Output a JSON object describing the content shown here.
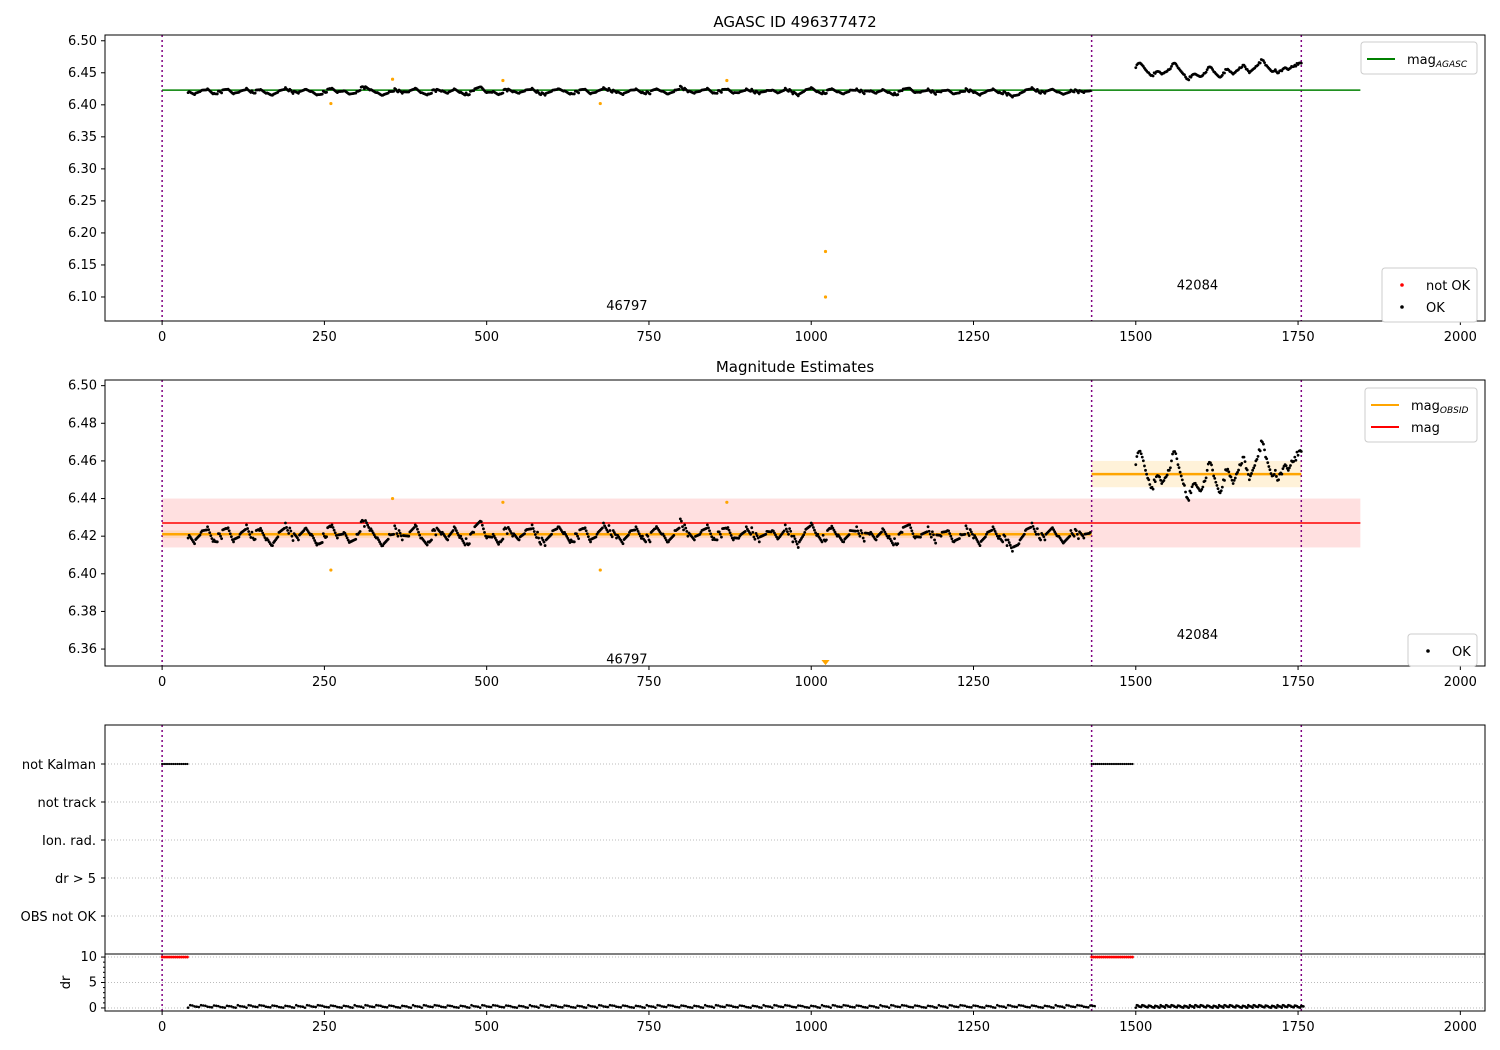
{
  "chart_data": [
    {
      "type": "scatter",
      "title": "AGASC ID 496377472",
      "xlim": [
        -88,
        2038
      ],
      "ylim": [
        6.0625,
        6.509
      ],
      "xticks": [
        0,
        250,
        500,
        750,
        1000,
        1250,
        1500,
        1750,
        2000
      ],
      "yticks": [
        "6.10",
        "6.15",
        "6.20",
        "6.25",
        "6.30",
        "6.35",
        "6.40",
        "6.45",
        "6.50"
      ],
      "hlines": [
        {
          "name": "mag_AGASC",
          "label_main": "mag",
          "label_sub": "AGASC",
          "y": 6.423,
          "x": [
            0,
            1846
          ],
          "color": "#008000"
        }
      ],
      "legend_top": [
        {
          "label_main": "mag",
          "label_sub": "AGASC",
          "color": "#008000",
          "kind": "line"
        }
      ],
      "legend_bottom": [
        {
          "label": "not OK",
          "color": "#ff0000",
          "kind": "dot"
        },
        {
          "label": "OK",
          "color": "#000000",
          "kind": "dot"
        }
      ],
      "annotations": [
        {
          "text": "46797",
          "x": 716,
          "y": 6.08
        },
        {
          "text": "42084",
          "x": 1595,
          "y": 6.112
        }
      ]
    },
    {
      "type": "scatter",
      "title": "Magnitude Estimates",
      "xlim": [
        -88,
        2038
      ],
      "ylim": [
        6.351,
        6.503
      ],
      "xticks": [
        0,
        250,
        500,
        750,
        1000,
        1250,
        1500,
        1750,
        2000
      ],
      "yticks": [
        "6.36",
        "6.38",
        "6.40",
        "6.42",
        "6.44",
        "6.46",
        "6.48",
        "6.50"
      ],
      "hlines": [
        {
          "name": "mag",
          "y": 6.427,
          "x": [
            0,
            1846
          ],
          "color": "#ff0000",
          "band": [
            6.414,
            6.44
          ]
        },
        {
          "name": "mag_OBSID-46797",
          "y": 6.421,
          "x": [
            0,
            1432
          ],
          "color": "#ffa500",
          "band": [
            6.419,
            6.423
          ]
        },
        {
          "name": "mag_OBSID-42084",
          "y": 6.453,
          "x": [
            1432,
            1755
          ],
          "color": "#ffa500",
          "band": [
            6.446,
            6.46
          ]
        }
      ],
      "legend_top": [
        {
          "label_main": "mag",
          "label_sub": "OBSID",
          "color": "#ffa500",
          "kind": "line"
        },
        {
          "label_main": "mag",
          "label_sub": "",
          "color": "#ff0000",
          "kind": "line"
        }
      ],
      "legend_bottom": [
        {
          "label": "OK",
          "color": "#000000",
          "kind": "dot"
        }
      ],
      "annotations": [
        {
          "text": "46797",
          "x": 716,
          "y": 6.355
        },
        {
          "text": "42084",
          "x": 1595,
          "y": 6.368
        }
      ]
    },
    {
      "type": "scatter",
      "title": "",
      "categories": [
        "not Kalman",
        "not track",
        "Ion. rad.",
        "dr > 5",
        "OBS not OK"
      ],
      "flagged": [
        {
          "category": "not Kalman",
          "x": [
            0,
            40
          ]
        },
        {
          "category": "not Kalman",
          "x": [
            1432,
            1495
          ]
        }
      ]
    },
    {
      "type": "scatter",
      "ylabel": "dr",
      "xlim": [
        -88,
        2038
      ],
      "ylim": [
        -0.6,
        10.6
      ],
      "yticks": [
        "0",
        "5",
        "10"
      ],
      "xticks": [
        0,
        250,
        500,
        750,
        1000,
        1250,
        1500,
        1750,
        2000
      ],
      "dr_clipped": [
        {
          "x": [
            0,
            40
          ],
          "value": 10
        },
        {
          "x": [
            1432,
            1495
          ],
          "value": 10
        }
      ],
      "dr_typical": 0.3
    }
  ],
  "observation_boundaries": [
    0,
    1432,
    1755
  ],
  "magnitudes": {
    "seg1": {
      "x_start": 40,
      "x_step": 10,
      "values": [
        6.419,
        6.416,
        6.422,
        6.425,
        6.418,
        6.42,
        6.424,
        6.417,
        6.421,
        6.426,
        6.419,
        6.423,
        6.418,
        6.415,
        6.422,
        6.427,
        6.42,
        6.418,
        6.424,
        6.421,
        6.416,
        6.42,
        6.425,
        6.419,
        6.422,
        6.417,
        6.421,
        6.428,
        6.423,
        6.419,
        6.415,
        6.421,
        6.424,
        6.418,
        6.42,
        6.426,
        6.419,
        6.417,
        6.423,
        6.421,
        6.418,
        6.425,
        6.42,
        6.416,
        6.422,
        6.428,
        6.419,
        6.421,
        6.417,
        6.424,
        6.42,
        6.418,
        6.423,
        6.426,
        6.419,
        6.415,
        6.421,
        6.425,
        6.422,
        6.418,
        6.42,
        6.424,
        6.417,
        6.421,
        6.427,
        6.423,
        6.419,
        6.416,
        6.422,
        6.425,
        6.42,
        6.418,
        6.424,
        6.421,
        6.417,
        6.423,
        6.428,
        6.42,
        6.418,
        6.422,
        6.426,
        6.419,
        6.421,
        6.424,
        6.418,
        6.42,
        6.425,
        6.422,
        6.417,
        6.421,
        6.423,
        6.419,
        6.426,
        6.42,
        6.414,
        6.422,
        6.427,
        6.421,
        6.418,
        6.424,
        6.42,
        6.417,
        6.423,
        6.425,
        6.419,
        6.421,
        6.418,
        6.424,
        6.42,
        6.416,
        6.422,
        6.426,
        6.419,
        6.421,
        6.425,
        6.418,
        6.42,
        6.423,
        6.417,
        6.421,
        6.424,
        6.419,
        6.415,
        6.421,
        6.425,
        6.42,
        6.418,
        6.412,
        6.416,
        6.423,
        6.427,
        6.421,
        6.418,
        6.424,
        6.42,
        6.417,
        6.423,
        6.421,
        6.419,
        6.422
      ]
    },
    "seg2": {
      "x_start": 1500,
      "x_step": 5,
      "values": [
        6.458,
        6.465,
        6.462,
        6.455,
        6.45,
        6.446,
        6.449,
        6.452,
        6.448,
        6.451,
        6.455,
        6.46,
        6.465,
        6.458,
        6.452,
        6.447,
        6.44,
        6.443,
        6.448,
        6.446,
        6.444,
        6.449,
        6.455,
        6.459,
        6.452,
        6.447,
        6.443,
        6.45,
        6.455,
        6.452,
        6.448,
        6.453,
        6.458,
        6.462,
        6.456,
        6.45,
        6.455,
        6.46,
        6.466,
        6.47,
        6.462,
        6.457,
        6.452,
        6.455,
        6.45,
        6.453,
        6.458,
        6.455,
        6.46,
        6.462,
        6.463,
        6.465
      ]
    },
    "outliers": [
      {
        "x": 260,
        "y": 6.402
      },
      {
        "x": 355,
        "y": 6.44
      },
      {
        "x": 525,
        "y": 6.438
      },
      {
        "x": 675,
        "y": 6.402
      },
      {
        "x": 870,
        "y": 6.438
      },
      {
        "x": 1022,
        "y": 6.171
      },
      {
        "x": 1022,
        "y": 6.1
      }
    ]
  },
  "colors": {
    "ok": "#000000",
    "outlier": "#ffa500",
    "not_ok": "#ff0000",
    "boundary": "#800080",
    "agasc": "#008000",
    "mag": "#ff0000",
    "obsid": "#ffa500"
  }
}
